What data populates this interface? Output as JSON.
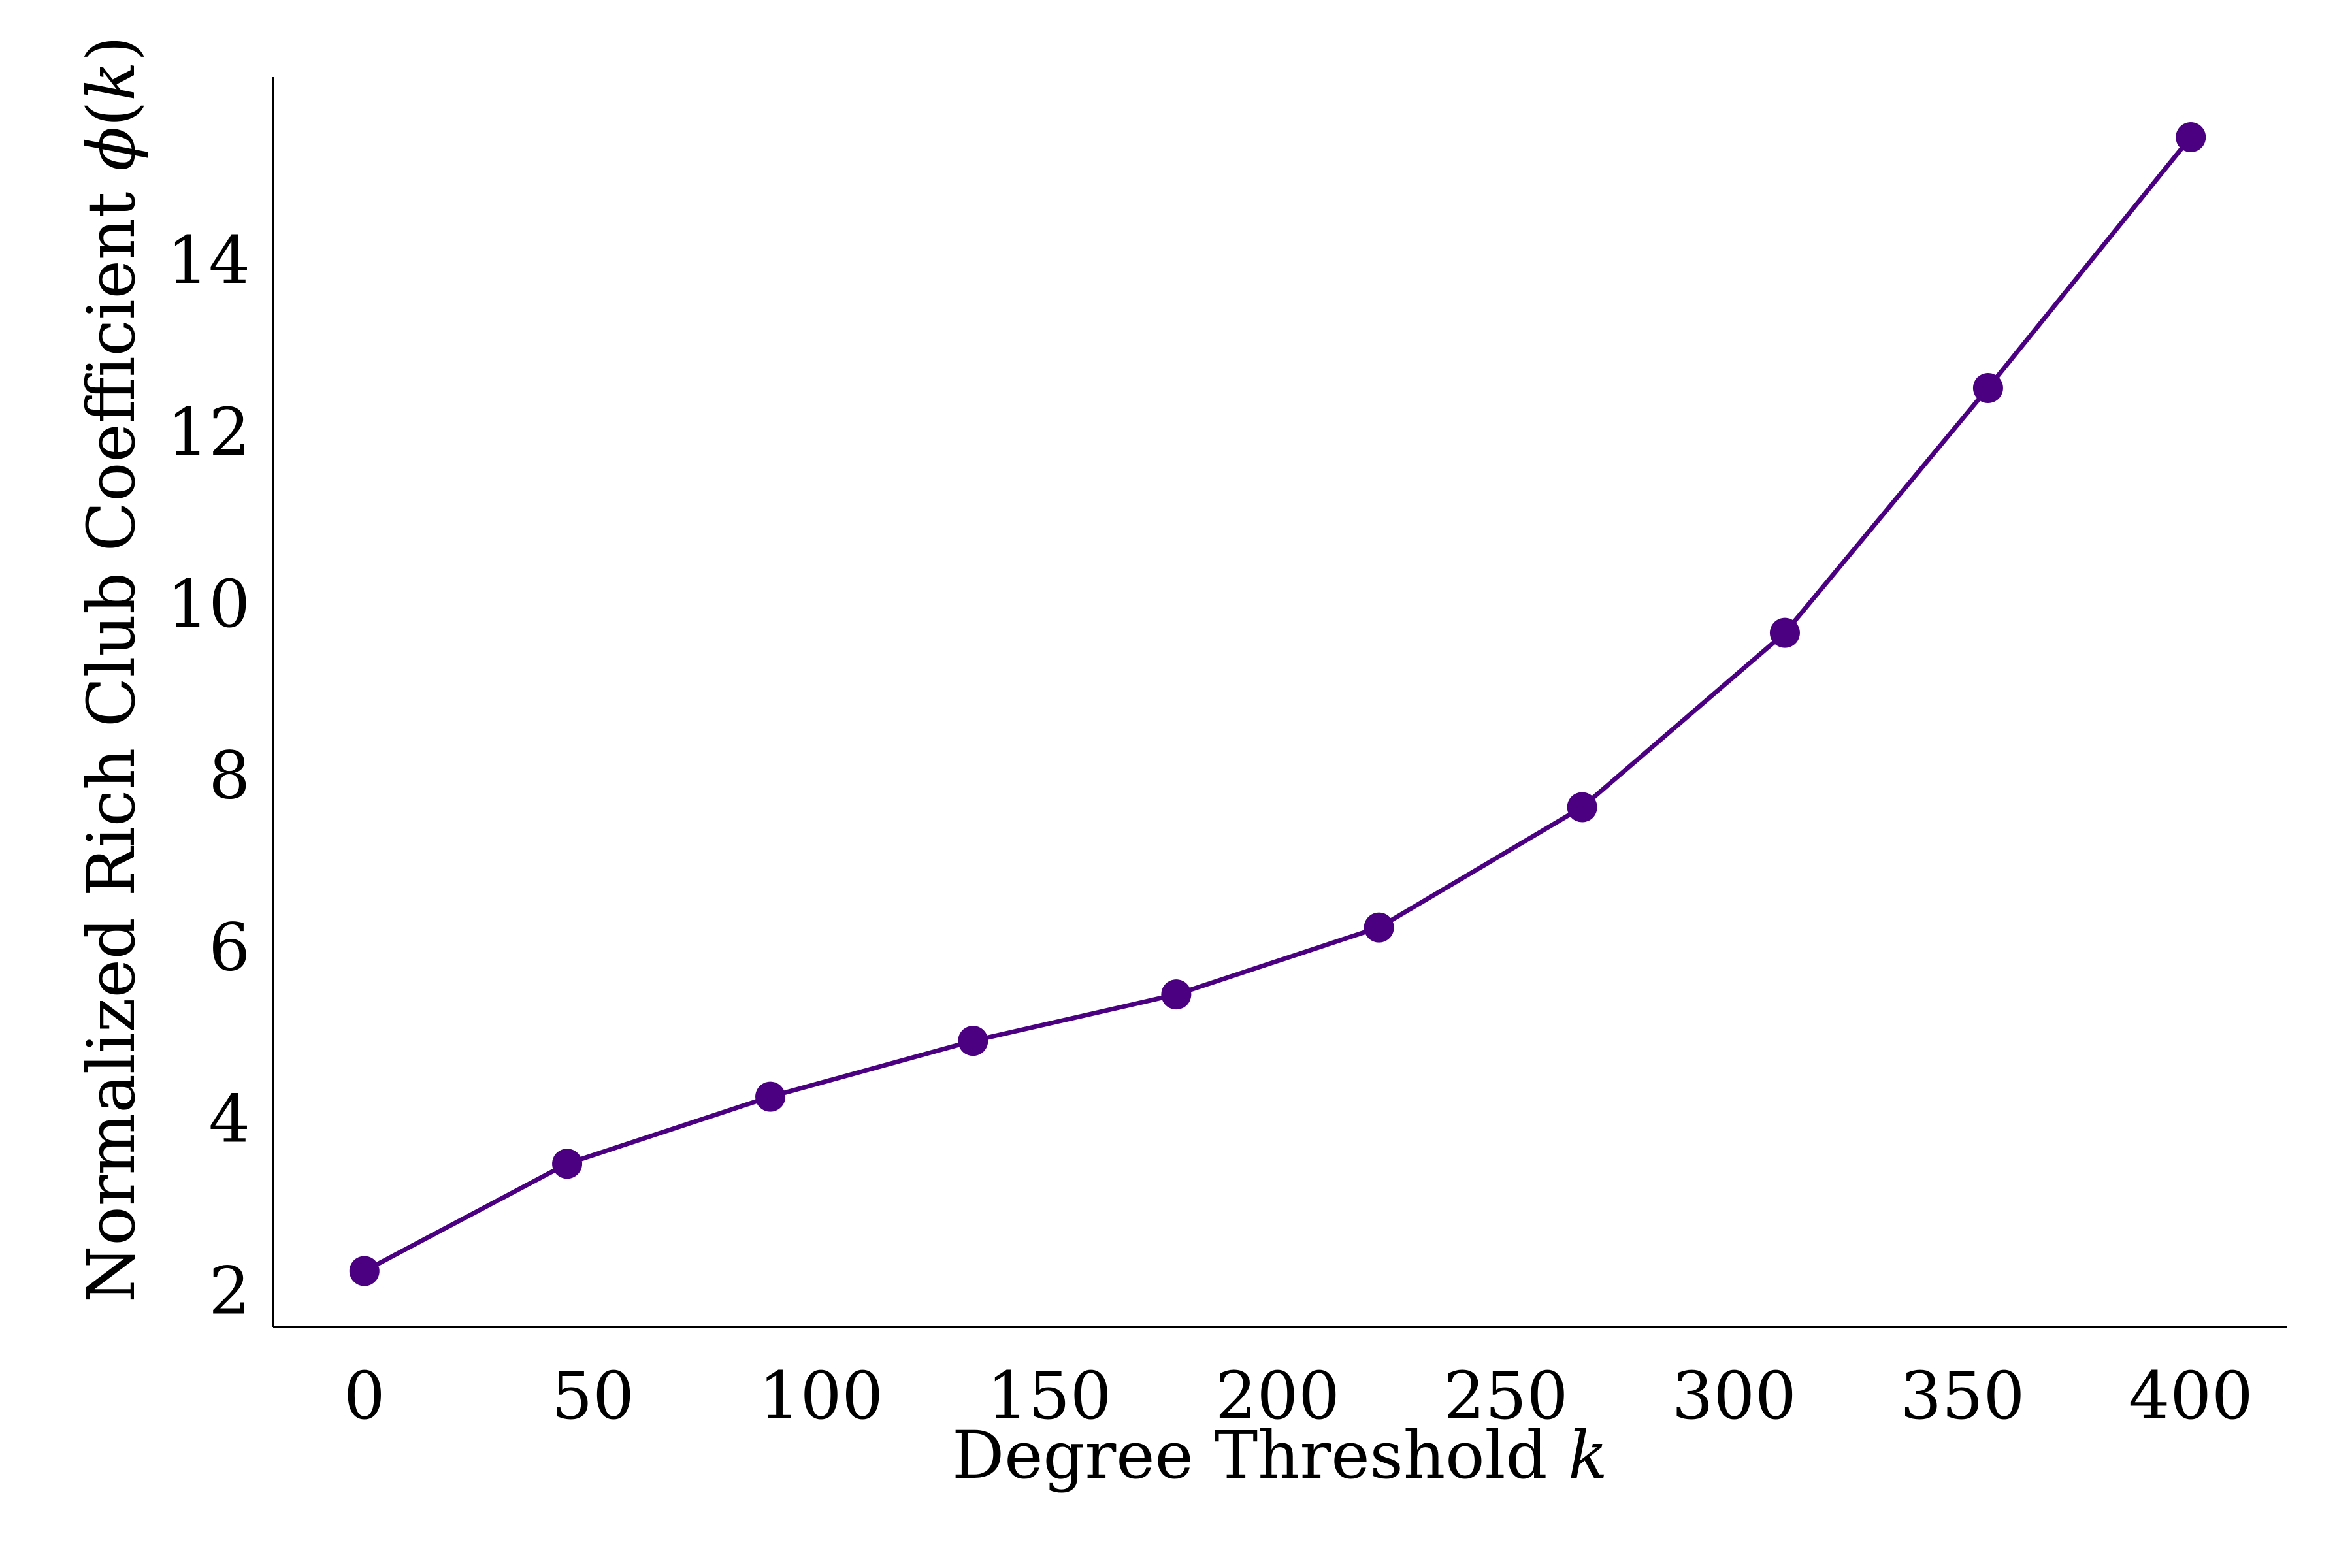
{
  "colors": {
    "series": "#4b0082",
    "axis": "#000000",
    "background": "#ffffff"
  },
  "chart_data": {
    "type": "line",
    "title": "",
    "xlabel": {
      "text": "Degree Threshold ",
      "var": "k"
    },
    "ylabel": {
      "text": "Normalized Rich Club Coefficient ",
      "var": "ϕ",
      "open": "(",
      "arg": "k",
      "close": ")"
    },
    "xlim": [
      -20,
      421
    ],
    "ylim": [
      1.65,
      16.2
    ],
    "xticks": [
      0,
      50,
      100,
      150,
      200,
      250,
      300,
      350,
      400
    ],
    "yticks": [
      2,
      4,
      6,
      8,
      10,
      12,
      14
    ],
    "grid": false,
    "legend": "none",
    "marker": "circle",
    "series": [
      {
        "x": [
          0,
          44.4,
          88.9,
          133.3,
          177.8,
          222.2,
          266.7,
          311.1,
          355.6,
          400
        ],
        "y": [
          2.3,
          3.55,
          4.33,
          4.98,
          5.52,
          6.3,
          7.7,
          9.73,
          12.58,
          15.5
        ]
      }
    ]
  }
}
